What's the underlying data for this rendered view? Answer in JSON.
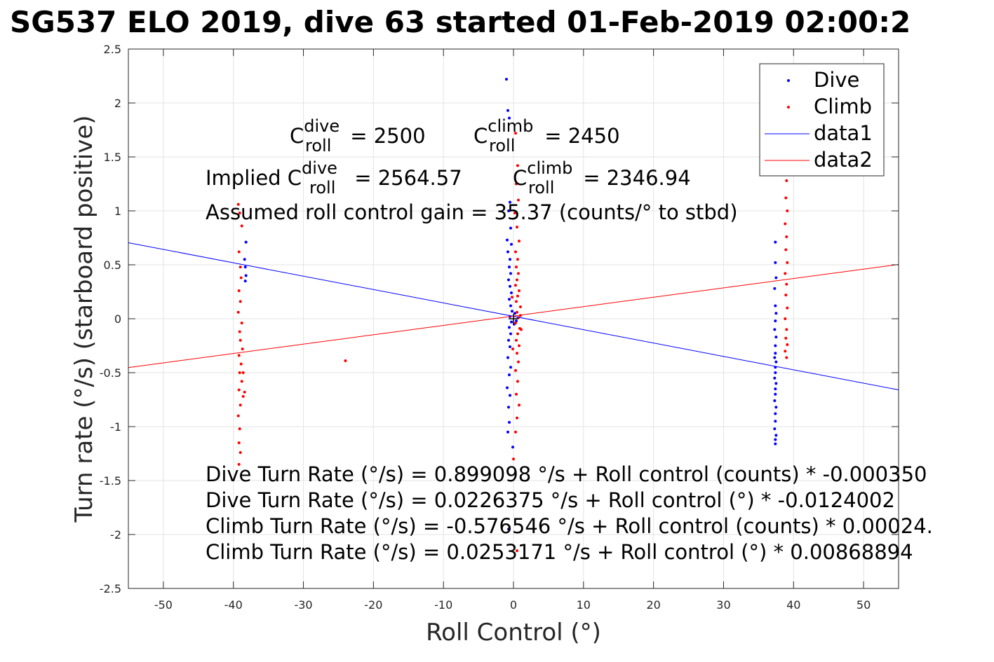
{
  "title": "SG537 ELO 2019, dive 63 started 01-Feb-2019 02:00:2",
  "annotations": {
    "c_dive_pre": "C",
    "c_dive_sup": "dive",
    "c_dive_sub": "roll",
    "c_dive_val": " = 2500",
    "c_climb_pre": "C",
    "c_climb_sup": "climb",
    "c_climb_sub": "roll",
    "c_climb_val": " = 2450",
    "implied_pre": "Implied C",
    "implied_dive_sup": "dive",
    "implied_dive_sub": "roll",
    "implied_dive_val": " = 2564.57",
    "implied_climb_pre": "C",
    "implied_climb_sup": "climb",
    "implied_climb_sub": "roll",
    "implied_climb_val": " = 2346.94",
    "gain": "Assumed roll control gain = 35.37 (counts/° to stbd)",
    "eq1": "Dive Turn Rate (°/s) = 0.899098 °/s + Roll control (counts) * -0.000350",
    "eq2": "Dive Turn Rate (°/s) = 0.0226375 °/s + Roll control (°) * -0.0124002",
    "eq3": "Climb Turn Rate (°/s) = -0.576546 °/s + Roll control (counts) * 0.00024.",
    "eq4": "Climb Turn Rate (°/s) = 0.0253171 °/s + Roll control (°) * 0.00868894"
  },
  "chart_data": {
    "type": "scatter",
    "xlabel": "Roll Control (°)",
    "ylabel": "Turn rate (°/s) (starboard positive)",
    "xlim": [
      -55,
      55
    ],
    "ylim": [
      -2.5,
      2.5
    ],
    "xticks": [
      "-50",
      "-40",
      "-30",
      "-20",
      "-10",
      "0",
      "10",
      "20",
      "30",
      "40",
      "50"
    ],
    "yticks": [
      "-2.5",
      "-2",
      "-1.5",
      "-1",
      "-0.5",
      "0",
      "0.5",
      "1",
      "1.5",
      "2",
      "2.5"
    ],
    "grid": true,
    "legend_position": "top-right",
    "series": [
      {
        "name": "Dive",
        "style": "points",
        "color": "#0000ff",
        "points": [
          [
            -1.0,
            2.22
          ],
          [
            -0.8,
            1.93
          ],
          [
            -0.6,
            1.86
          ],
          [
            -0.5,
            1.08
          ],
          [
            -0.7,
            1.0
          ],
          [
            -0.4,
            0.84
          ],
          [
            -0.9,
            0.73
          ],
          [
            -0.3,
            0.69
          ],
          [
            -0.8,
            0.62
          ],
          [
            -0.5,
            0.55
          ],
          [
            -0.6,
            0.48
          ],
          [
            -0.4,
            0.42
          ],
          [
            -0.7,
            0.36
          ],
          [
            -0.5,
            0.3
          ],
          [
            -0.3,
            0.24
          ],
          [
            -0.6,
            0.18
          ],
          [
            -0.4,
            0.12
          ],
          [
            -0.2,
            0.07
          ],
          [
            -0.5,
            0.02
          ],
          [
            -0.3,
            -0.03
          ],
          [
            -0.6,
            -0.08
          ],
          [
            -0.4,
            -0.14
          ],
          [
            -0.7,
            -0.2
          ],
          [
            -0.5,
            -0.26
          ],
          [
            -0.8,
            -0.36
          ],
          [
            -0.4,
            -0.45
          ],
          [
            -0.6,
            -0.52
          ],
          [
            -0.9,
            -0.64
          ],
          [
            -0.5,
            -0.71
          ],
          [
            -0.7,
            -0.82
          ],
          [
            -0.6,
            -0.96
          ],
          [
            -0.8,
            -1.05
          ],
          [
            -0.1,
            -1.19
          ],
          [
            -0.7,
            -1.95
          ],
          [
            0.2,
            0.05
          ],
          [
            0.4,
            -0.02
          ],
          [
            0.1,
            -0.05
          ],
          [
            -38.2,
            0.71
          ],
          [
            -38.4,
            0.55
          ],
          [
            -38.3,
            0.48
          ],
          [
            -38.2,
            0.4
          ],
          [
            -38.3,
            0.35
          ],
          [
            37.4,
            0.71
          ],
          [
            37.4,
            0.52
          ],
          [
            37.5,
            0.38
          ],
          [
            37.3,
            0.28
          ],
          [
            37.4,
            0.12
          ],
          [
            37.5,
            0.05
          ],
          [
            37.4,
            -0.02
          ],
          [
            37.3,
            -0.1
          ],
          [
            37.5,
            -0.17
          ],
          [
            37.4,
            -0.25
          ],
          [
            37.4,
            -0.32
          ],
          [
            37.3,
            -0.36
          ],
          [
            37.5,
            -0.4
          ],
          [
            37.4,
            -0.45
          ],
          [
            37.4,
            -0.5
          ],
          [
            37.3,
            -0.55
          ],
          [
            37.5,
            -0.6
          ],
          [
            37.4,
            -0.65
          ],
          [
            37.4,
            -0.7
          ],
          [
            37.3,
            -0.76
          ],
          [
            37.5,
            -0.82
          ],
          [
            37.4,
            -0.88
          ],
          [
            37.4,
            -0.95
          ],
          [
            37.3,
            -1.02
          ],
          [
            37.5,
            -1.08
          ],
          [
            37.4,
            -1.12
          ],
          [
            37.4,
            -1.16
          ]
        ]
      },
      {
        "name": "Climb",
        "style": "points",
        "color": "#ff0000",
        "points": [
          [
            0.3,
            1.72
          ],
          [
            0.6,
            1.42
          ],
          [
            0.4,
            1.25
          ],
          [
            0.7,
            1.1
          ],
          [
            0.2,
            0.98
          ],
          [
            0.5,
            0.85
          ],
          [
            0.8,
            0.72
          ],
          [
            0.3,
            0.62
          ],
          [
            0.6,
            0.55
          ],
          [
            0.4,
            0.48
          ],
          [
            0.7,
            0.42
          ],
          [
            0.5,
            0.36
          ],
          [
            0.3,
            0.31
          ],
          [
            0.8,
            0.26
          ],
          [
            0.6,
            0.21
          ],
          [
            0.4,
            0.16
          ],
          [
            1.0,
            0.11
          ],
          [
            0.5,
            0.06
          ],
          [
            0.7,
            0.01
          ],
          [
            0.3,
            -0.04
          ],
          [
            0.9,
            -0.09
          ],
          [
            0.6,
            -0.14
          ],
          [
            0.4,
            -0.2
          ],
          [
            0.8,
            -0.25
          ],
          [
            0.5,
            -0.32
          ],
          [
            0.7,
            -0.4
          ],
          [
            0.3,
            -0.48
          ],
          [
            0.6,
            -0.58
          ],
          [
            0.4,
            -0.7
          ],
          [
            0.8,
            -0.8
          ],
          [
            0.5,
            -0.92
          ],
          [
            0.3,
            -1.05
          ],
          [
            0.0,
            -1.3
          ],
          [
            0.5,
            -2.15
          ],
          [
            1.0,
            0.03
          ],
          [
            1.1,
            -0.1
          ],
          [
            -0.2,
            0.2
          ],
          [
            -0.1,
            -0.28
          ],
          [
            -24.0,
            -0.39
          ],
          [
            -39.3,
            1.06
          ],
          [
            -39.1,
            0.98
          ],
          [
            -38.8,
            0.86
          ],
          [
            -39.2,
            0.62
          ],
          [
            -39.0,
            0.48
          ],
          [
            -38.9,
            0.38
          ],
          [
            -39.2,
            0.26
          ],
          [
            -39.0,
            0.16
          ],
          [
            -39.3,
            0.06
          ],
          [
            -38.8,
            -0.04
          ],
          [
            -39.1,
            -0.12
          ],
          [
            -39.0,
            -0.2
          ],
          [
            -38.7,
            -0.28
          ],
          [
            -39.2,
            -0.34
          ],
          [
            -38.9,
            -0.42
          ],
          [
            -39.1,
            -0.5
          ],
          [
            -38.8,
            -0.58
          ],
          [
            -39.2,
            -0.66
          ],
          [
            -38.6,
            -0.72
          ],
          [
            -39.0,
            -0.8
          ],
          [
            -39.3,
            -0.9
          ],
          [
            -39.1,
            -1.02
          ],
          [
            -39.2,
            -1.15
          ],
          [
            -39.0,
            -1.24
          ],
          [
            -39.2,
            -1.35
          ],
          [
            -38.4,
            -0.68
          ],
          [
            -38.6,
            -0.5
          ],
          [
            39.0,
            1.28
          ],
          [
            38.9,
            1.12
          ],
          [
            39.1,
            1.0
          ],
          [
            38.8,
            0.88
          ],
          [
            39.0,
            0.76
          ],
          [
            38.9,
            0.64
          ],
          [
            39.1,
            0.52
          ],
          [
            38.8,
            0.42
          ],
          [
            39.0,
            0.32
          ],
          [
            38.9,
            0.22
          ],
          [
            39.1,
            0.1
          ],
          [
            38.8,
            0.0
          ],
          [
            39.0,
            -0.1
          ],
          [
            38.9,
            -0.18
          ],
          [
            39.1,
            -0.24
          ],
          [
            38.8,
            -0.3
          ],
          [
            39.0,
            -0.36
          ]
        ]
      },
      {
        "name": "data1",
        "style": "line",
        "color": "#0000ff",
        "points": [
          [
            -55,
            0.7046485
          ],
          [
            55,
            -0.6593735
          ]
        ]
      },
      {
        "name": "data2",
        "style": "line",
        "color": "#ff0000",
        "points": [
          [
            -55,
            -0.4525746
          ],
          [
            55,
            0.5032088
          ]
        ]
      }
    ],
    "zero_marker": {
      "x": 0,
      "y": 0,
      "color": "#000000"
    }
  }
}
